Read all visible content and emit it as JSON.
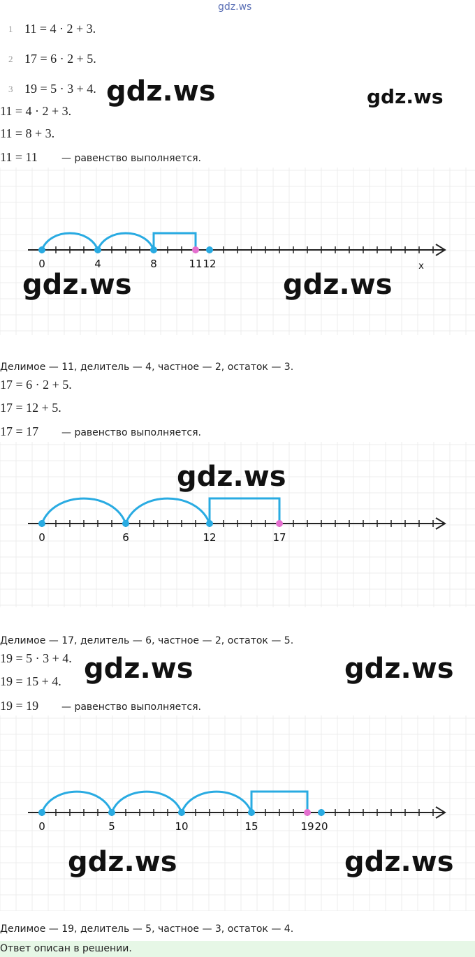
{
  "header": {
    "watermark": "gdz.ws"
  },
  "task_list": [
    {
      "number": "1",
      "text": "11 = 4 · 2 + 3."
    },
    {
      "number": "2",
      "text": "17 = 6 · 2 + 5."
    },
    {
      "number": "3",
      "text": "19 = 5 · 3 + 4."
    }
  ],
  "watermarks": [
    "gdz.ws",
    "gdz.ws",
    "gdz.ws",
    "gdz.ws",
    "gdz.ws",
    "gdz.ws",
    "gdz.ws",
    "gdz.ws",
    "gdz.ws"
  ],
  "sections": [
    {
      "lines": [
        "11 = 4 · 2 + 3.",
        "11 = 8 + 3."
      ],
      "check": {
        "math": "11 = 11",
        "text": "— равенство выполняется."
      },
      "number_line": {
        "labels": [
          0,
          4,
          8,
          11,
          12
        ],
        "highlight": 11,
        "axis_label": "x"
      },
      "conclusion": "Делимое — 11, делитель — 4, частное — 2, остаток — 3."
    },
    {
      "lines": [
        "17 = 6 · 2 + 5.",
        "17 = 12 + 5."
      ],
      "check": {
        "math": "17 = 17",
        "text": "— равенство выполняется."
      },
      "number_line": {
        "labels": [
          0,
          6,
          12,
          17
        ],
        "highlight": 17
      },
      "conclusion": "Делимое — 17, делитель — 6, частное — 2, остаток — 5."
    },
    {
      "lines": [
        "19 = 5 · 3 + 4.",
        "19 = 15 + 4."
      ],
      "check": {
        "math": "19 = 19",
        "text": "— равенство выполняется."
      },
      "number_line": {
        "labels": [
          0,
          5,
          10,
          15,
          19,
          20
        ],
        "highlight": 19
      },
      "conclusion": "Делимое — 19, делитель — 5, частное — 3, остаток — 4."
    }
  ],
  "answer": "Ответ описан в решении."
}
